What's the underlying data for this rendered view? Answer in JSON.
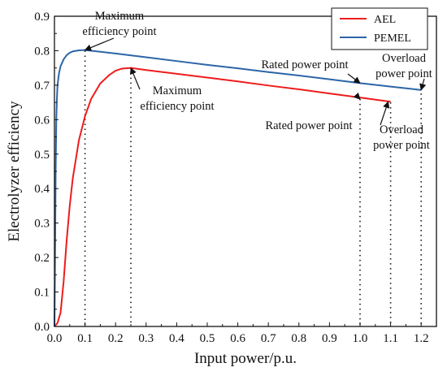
{
  "chart_data": {
    "type": "line",
    "xlabel": "Input power/p.u.",
    "ylabel": "Electrolyzer efficiency",
    "xlim": [
      0.0,
      1.25
    ],
    "ylim": [
      0.0,
      0.9
    ],
    "xticks": [
      0.0,
      0.1,
      0.2,
      0.3,
      0.4,
      0.5,
      0.6,
      0.7,
      0.8,
      0.9,
      1.0,
      1.1,
      1.2
    ],
    "yticks": [
      0.0,
      0.1,
      0.2,
      0.3,
      0.4,
      0.5,
      0.6,
      0.7,
      0.8,
      0.9
    ],
    "grid": false,
    "legend_position": "top-right",
    "series": [
      {
        "name": "AEL",
        "color": "#ee1c1c",
        "x": [
          0.0,
          0.01,
          0.02,
          0.03,
          0.04,
          0.05,
          0.06,
          0.08,
          0.1,
          0.12,
          0.15,
          0.18,
          0.2,
          0.22,
          0.25,
          0.3,
          0.4,
          0.5,
          0.6,
          0.7,
          0.8,
          0.9,
          1.0,
          1.1
        ],
        "y": [
          0.0,
          0.01,
          0.04,
          0.13,
          0.25,
          0.35,
          0.43,
          0.54,
          0.61,
          0.66,
          0.705,
          0.73,
          0.742,
          0.748,
          0.75,
          0.744,
          0.733,
          0.722,
          0.711,
          0.699,
          0.688,
          0.676,
          0.664,
          0.652
        ]
      },
      {
        "name": "PEMEL",
        "color": "#2b65a8",
        "x": [
          0.0,
          0.002,
          0.004,
          0.006,
          0.008,
          0.01,
          0.015,
          0.02,
          0.03,
          0.04,
          0.05,
          0.06,
          0.08,
          0.1,
          0.2,
          0.3,
          0.4,
          0.5,
          0.6,
          0.7,
          0.8,
          0.9,
          1.0,
          1.1,
          1.2
        ],
        "y": [
          0.0,
          0.2,
          0.45,
          0.6,
          0.66,
          0.7,
          0.735,
          0.755,
          0.775,
          0.787,
          0.794,
          0.798,
          0.801,
          0.802,
          0.792,
          0.781,
          0.77,
          0.759,
          0.749,
          0.738,
          0.728,
          0.717,
          0.706,
          0.696,
          0.686
        ]
      }
    ],
    "guide_lines": [
      {
        "x": 0.1,
        "y_top": 0.8
      },
      {
        "x": 0.25,
        "y_top": 0.75
      },
      {
        "x": 1.0,
        "y_top": 0.66
      },
      {
        "x": 1.1,
        "y_top": 0.65
      },
      {
        "x": 1.2,
        "y_top": 0.69
      }
    ],
    "annotations": [
      {
        "lines": [
          "Maximum",
          "efficiency point"
        ],
        "series": "PEMEL",
        "target": [
          0.1,
          0.802
        ]
      },
      {
        "lines": [
          "Maximum",
          "efficiency point"
        ],
        "series": "AEL",
        "target": [
          0.25,
          0.75
        ]
      },
      {
        "lines": [
          "Rated power point"
        ],
        "series": "PEMEL",
        "target": [
          1.0,
          0.706
        ]
      },
      {
        "lines": [
          "Overload",
          "power point"
        ],
        "series": "PEMEL",
        "target": [
          1.2,
          0.686
        ]
      },
      {
        "lines": [
          "Rated power point"
        ],
        "series": "AEL",
        "target": [
          1.0,
          0.664
        ]
      },
      {
        "lines": [
          "Overload",
          "power point"
        ],
        "series": "AEL",
        "target": [
          1.1,
          0.652
        ]
      }
    ]
  }
}
